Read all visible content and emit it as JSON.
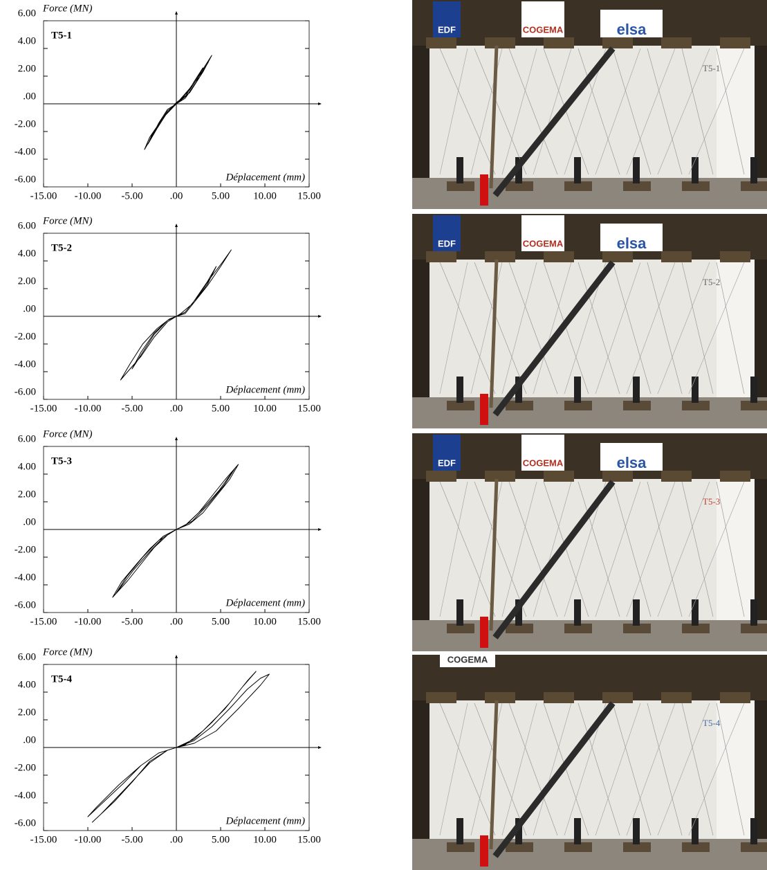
{
  "chart_data": [
    {
      "type": "line",
      "title": "T5-1",
      "ylabel": "Force (MN)",
      "xlabel": "Déplacement (mm)",
      "xlim": [
        -15,
        15
      ],
      "ylim": [
        -6,
        6
      ],
      "xticks": [
        {
          "value": -15,
          "label": "-15.00"
        },
        {
          "value": -10,
          "label": "-10.00"
        },
        {
          "value": -5,
          "label": "-5.00"
        },
        {
          "value": 0,
          "label": ".00"
        },
        {
          "value": 5,
          "label": "5.00"
        },
        {
          "value": 10,
          "label": "10.00"
        },
        {
          "value": 15,
          "label": "15.00"
        }
      ],
      "yticks": [
        {
          "value": 6,
          "label": "6.00"
        },
        {
          "value": 4,
          "label": "4.00"
        },
        {
          "value": 2,
          "label": "2.00"
        },
        {
          "value": 0,
          "label": ".00"
        },
        {
          "value": -2,
          "label": "-2.00"
        },
        {
          "value": -4,
          "label": "-4.00"
        },
        {
          "value": -6,
          "label": "-6.00"
        }
      ],
      "series": [
        {
          "color": "#000000",
          "x": [
            0,
            1,
            2,
            3,
            2.2,
            1,
            0,
            -1,
            -2,
            -2.8,
            -2,
            -1,
            0,
            1.5,
            3,
            3.6,
            2.6,
            1.2,
            0,
            -1.5,
            -2.8,
            -3.2,
            -2.2,
            -1,
            0,
            1.5,
            3,
            4,
            3,
            1.5,
            0,
            -1.5,
            -3,
            -3.6,
            -2.6,
            -1.2,
            0
          ],
          "values": [
            0,
            0.5,
            1.6,
            2.6,
            1.5,
            0.4,
            0,
            -0.5,
            -1.5,
            -2.4,
            -1.4,
            -0.4,
            0,
            1.0,
            2.4,
            3.0,
            1.9,
            0.6,
            0.05,
            -1.0,
            -2.3,
            -2.9,
            -1.8,
            -0.6,
            0,
            1.1,
            2.5,
            3.5,
            2.3,
            0.8,
            0.1,
            -1.0,
            -2.4,
            -3.3,
            -2.2,
            -0.8,
            0
          ]
        }
      ]
    },
    {
      "type": "line",
      "title": "T5-2",
      "ylabel": "Force (MN)",
      "xlabel": "Déplacement (mm)",
      "xlim": [
        -15,
        15
      ],
      "ylim": [
        -6,
        6
      ],
      "xticks": [
        {
          "value": -15,
          "label": "-15.00"
        },
        {
          "value": -10,
          "label": "-10.00"
        },
        {
          "value": -5,
          "label": "-5.00"
        },
        {
          "value": 0,
          "label": ".00"
        },
        {
          "value": 5,
          "label": "5.00"
        },
        {
          "value": 10,
          "label": "10.00"
        },
        {
          "value": 15,
          "label": "15.00"
        }
      ],
      "yticks": [
        {
          "value": 6,
          "label": "6.00"
        },
        {
          "value": 4,
          "label": "4.00"
        },
        {
          "value": 2,
          "label": "2.00"
        },
        {
          "value": 0,
          "label": ".00"
        },
        {
          "value": -2,
          "label": "-2.00"
        },
        {
          "value": -4,
          "label": "-4.00"
        },
        {
          "value": -6,
          "label": "-6.00"
        }
      ],
      "series": [
        {
          "color": "#000000",
          "x": [
            0,
            1,
            2,
            3.5,
            4.5,
            3.5,
            2,
            1,
            0,
            -1,
            -2.5,
            -4,
            -5,
            -4,
            -2.5,
            -1,
            0,
            1,
            2.5,
            4,
            5.2,
            6.2,
            5,
            3.5,
            2,
            0.5,
            0,
            -1,
            -2.5,
            -4,
            -5.5,
            -6.3,
            -5.2,
            -3.8,
            -2.2,
            -0.8,
            0
          ],
          "values": [
            0,
            0.3,
            1.1,
            2.5,
            3.6,
            2.3,
            1.0,
            0.2,
            0,
            -0.3,
            -1.3,
            -2.8,
            -3.8,
            -2.6,
            -1.2,
            -0.3,
            0,
            0.3,
            1.5,
            2.9,
            3.9,
            4.8,
            3.6,
            2.2,
            1.0,
            0.2,
            0,
            -0.4,
            -1.5,
            -2.9,
            -4.0,
            -4.6,
            -3.4,
            -2.0,
            -0.9,
            -0.2,
            0
          ]
        }
      ]
    },
    {
      "type": "line",
      "title": "T5-3",
      "ylabel": "Force (MN)",
      "xlabel": "Déplacement (mm)",
      "xlim": [
        -15,
        15
      ],
      "ylim": [
        -6,
        6
      ],
      "xticks": [
        {
          "value": -15,
          "label": "-15.00"
        },
        {
          "value": -10,
          "label": "-10.00"
        },
        {
          "value": -5,
          "label": "-5.00"
        },
        {
          "value": 0,
          "label": ".00"
        },
        {
          "value": 5,
          "label": "5.00"
        },
        {
          "value": 10,
          "label": "10.00"
        },
        {
          "value": 15,
          "label": "15.00"
        }
      ],
      "yticks": [
        {
          "value": 6,
          "label": "6.00"
        },
        {
          "value": 4,
          "label": "4.00"
        },
        {
          "value": 2,
          "label": "2.00"
        },
        {
          "value": 0,
          "label": ".00"
        },
        {
          "value": -2,
          "label": "-2.00"
        },
        {
          "value": -4,
          "label": "-4.00"
        },
        {
          "value": -6,
          "label": "-6.00"
        }
      ],
      "series": [
        {
          "color": "#000000",
          "x": [
            0,
            1,
            2.5,
            4,
            5.5,
            7,
            6,
            4.5,
            3,
            1.5,
            0,
            -1,
            -2.5,
            -4,
            -5.5,
            -7.2,
            -6.2,
            -4.5,
            -3,
            -1.5,
            0,
            1.2,
            3,
            4.8,
            6.6,
            5.4,
            3.6,
            1.8,
            0,
            -1.5,
            -3,
            -4.8,
            -6.8,
            -5.6,
            -3.8,
            -2,
            0
          ],
          "values": [
            0,
            0.3,
            1.2,
            2.4,
            3.6,
            4.7,
            3.6,
            2.4,
            1.2,
            0.4,
            0,
            -0.4,
            -1.3,
            -2.5,
            -3.7,
            -4.9,
            -3.8,
            -2.5,
            -1.4,
            -0.5,
            0,
            0.4,
            1.5,
            2.8,
            4.4,
            3.2,
            1.8,
            0.6,
            0,
            -0.6,
            -1.6,
            -2.9,
            -4.6,
            -3.4,
            -2.0,
            -0.8,
            0
          ]
        }
      ]
    },
    {
      "type": "line",
      "title": "T5-4",
      "ylabel": "Force (MN)",
      "xlabel": "Déplacement (mm)",
      "xlim": [
        -15,
        15
      ],
      "ylim": [
        -6,
        6
      ],
      "xticks": [
        {
          "value": -15,
          "label": "-15.00"
        },
        {
          "value": -10,
          "label": "-10.00"
        },
        {
          "value": -5,
          "label": "-5.00"
        },
        {
          "value": 0,
          "label": ".00"
        },
        {
          "value": 5,
          "label": "5.00"
        },
        {
          "value": 10,
          "label": "10.00"
        },
        {
          "value": 15,
          "label": "15.00"
        }
      ],
      "yticks": [
        {
          "value": 6,
          "label": "6.00"
        },
        {
          "value": 4,
          "label": "4.00"
        },
        {
          "value": 2,
          "label": "2.00"
        },
        {
          "value": 0,
          "label": ".00"
        },
        {
          "value": -2,
          "label": "-2.00"
        },
        {
          "value": -4,
          "label": "-4.00"
        },
        {
          "value": -6,
          "label": "-6.00"
        }
      ],
      "series": [
        {
          "color": "#000000",
          "x": [
            0,
            2,
            4,
            6,
            8,
            9.5,
            10.5,
            9.5,
            7,
            4.5,
            2,
            0,
            -2,
            -4,
            -6,
            -8,
            -10,
            -9,
            -6.5,
            -4,
            -2,
            0,
            2,
            4,
            6,
            7.5,
            9,
            8,
            5.5,
            3,
            1,
            -1,
            -3,
            -5,
            -7,
            -9.5,
            -8.5,
            -5.5,
            -3,
            -1,
            0
          ],
          "values": [
            0,
            0.5,
            1.5,
            2.8,
            4.2,
            5.0,
            5.3,
            4.5,
            2.8,
            1.2,
            0.3,
            0,
            -0.4,
            -1.3,
            -2.6,
            -3.8,
            -5.0,
            -4.3,
            -2.7,
            -1.3,
            -0.4,
            0,
            0.6,
            1.8,
            3.2,
            4.4,
            5.5,
            4.8,
            2.8,
            1.2,
            0.2,
            -0.2,
            -1.0,
            -2.5,
            -3.9,
            -5.4,
            -4.8,
            -2.8,
            -1.1,
            -0.2,
            0
          ]
        }
      ]
    }
  ],
  "photos": [
    {
      "label": "T5-1",
      "logos": [
        "EDF",
        "COGEMA",
        "elsa"
      ]
    },
    {
      "label": "T5-2",
      "logos": [
        "EDF",
        "COGEMA",
        "elsa"
      ]
    },
    {
      "label": "T5-3",
      "logos": [
        "EDF",
        "COGEMA",
        "elsa"
      ]
    },
    {
      "label": "T5-4",
      "logos": [
        "COGEMA"
      ]
    }
  ]
}
